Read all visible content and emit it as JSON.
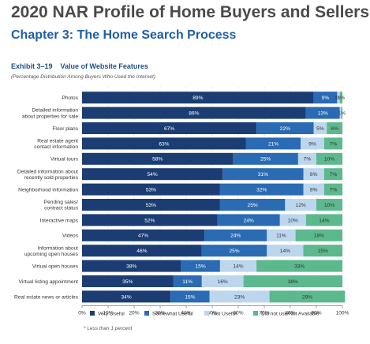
{
  "header": {
    "title": "2020 NAR Profile of Home Buyers and Sellers",
    "chapter": "Chapter 3: The Home Search Process",
    "exhibit_number": "Exhibit 3–19",
    "exhibit_title": "Value of Website Features",
    "note": "(Percentage Distribution Among Buyers Who Used the Internet)"
  },
  "footnote": "* Less than 1 percent",
  "colors": {
    "very_useful": "#1b3d73",
    "somewhat_useful": "#2a6bb3",
    "not_useful": "#bcd6ee",
    "not_available": "#5cb98d"
  },
  "chart_data": {
    "type": "bar",
    "orientation": "horizontal",
    "stacked": true,
    "categories": [
      "Photos",
      "Detailed information about properties for sale",
      "Floor plans",
      "Real estate agent contact information",
      "Virtual tours",
      "Detailed information about recently sold properties",
      "Neighborhood information",
      "Pending sales/ contract status",
      "Interactive maps",
      "Videos",
      "Information about upcoming open houses",
      "Virtual open houses",
      "Virtual listing appointment",
      "Real estate news or articles"
    ],
    "category_lines": [
      [
        "Photos"
      ],
      [
        "Detailed information",
        "about properties for sale"
      ],
      [
        "Floor plans"
      ],
      [
        "Real estate agent",
        "contact information"
      ],
      [
        "Virtual tours"
      ],
      [
        "Detailed information about",
        "recently sold properties"
      ],
      [
        "Neighborhood information"
      ],
      [
        "Pending sales/",
        "contract status"
      ],
      [
        "Interactive maps"
      ],
      [
        "Videos"
      ],
      [
        "Information about",
        "upcoming open houses"
      ],
      [
        "Virtual open houses"
      ],
      [
        "Virtual listing appointment"
      ],
      [
        "Real estate news or articles"
      ]
    ],
    "series": [
      {
        "name": "Very Useful",
        "values": [
          89,
          86,
          67,
          63,
          58,
          54,
          53,
          53,
          52,
          47,
          46,
          38,
          35,
          34
        ]
      },
      {
        "name": "Somewhat Useful",
        "values": [
          9,
          13,
          22,
          21,
          25,
          31,
          32,
          25,
          24,
          24,
          25,
          15,
          11,
          15
        ]
      },
      {
        "name": "Not Useful",
        "values": [
          1,
          0.5,
          5,
          9,
          7,
          8,
          8,
          12,
          10,
          11,
          14,
          14,
          16,
          23
        ]
      },
      {
        "name": "Did not use/Not Available",
        "values": [
          1,
          0.5,
          6,
          7,
          10,
          7,
          7,
          10,
          14,
          18,
          15,
          33,
          38,
          29
        ]
      }
    ],
    "value_labels": [
      [
        "89%",
        "9%",
        "1%",
        "1%"
      ],
      [
        "86%",
        "13%",
        "",
        "1%"
      ],
      [
        "67%",
        "22%",
        "5%",
        "6%"
      ],
      [
        "63%",
        "21%",
        "9%",
        "7%"
      ],
      [
        "58%",
        "25%",
        "7%",
        "10%"
      ],
      [
        "54%",
        "31%",
        "8%",
        "7%"
      ],
      [
        "53%",
        "32%",
        "8%",
        "7%"
      ],
      [
        "53%",
        "25%",
        "12%",
        "10%"
      ],
      [
        "52%",
        "24%",
        "10%",
        "14%"
      ],
      [
        "47%",
        "24%",
        "11%",
        "18%"
      ],
      [
        "46%",
        "25%",
        "14%",
        "15%"
      ],
      [
        "38%",
        "15%",
        "14%",
        "33%"
      ],
      [
        "35%",
        "11%",
        "16%",
        "38%"
      ],
      [
        "34%",
        "15%",
        "23%",
        "29%"
      ]
    ],
    "x_ticks": [
      "0%",
      "10%",
      "20%",
      "30%",
      "40%",
      "50%",
      "60%",
      "70%",
      "80%",
      "90%",
      "100%"
    ],
    "xlim": [
      0,
      100
    ],
    "legend_position": "bottom"
  }
}
